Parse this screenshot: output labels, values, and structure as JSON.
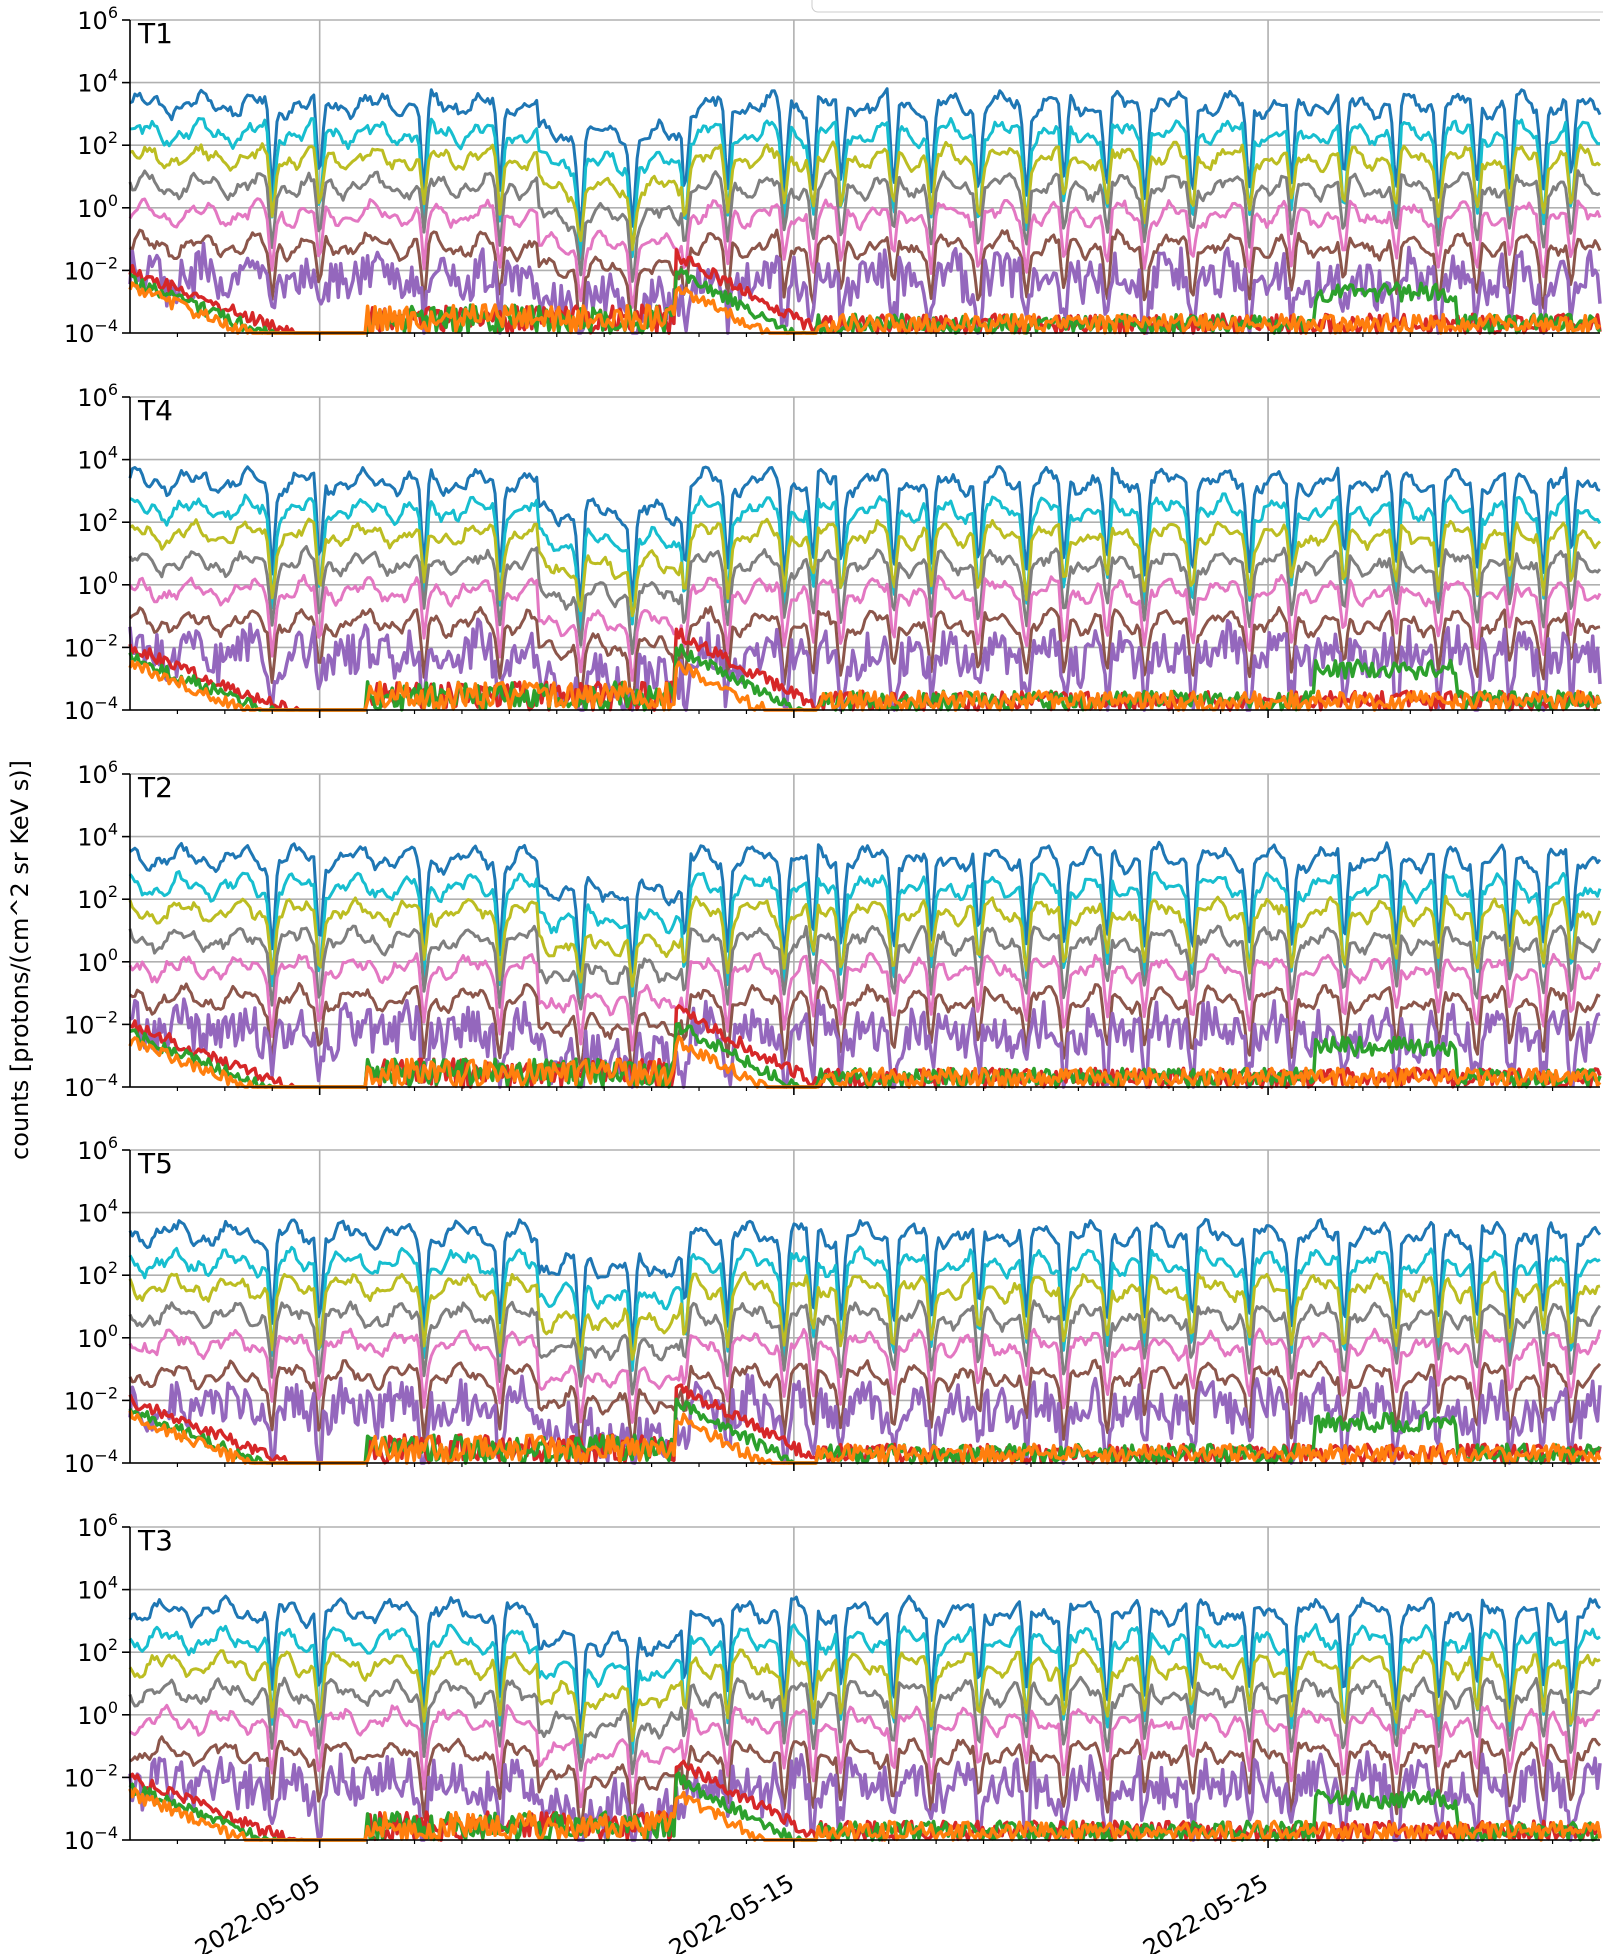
{
  "figure": {
    "ylabel": "counts [protons/(cm^2 sr KeV s)]",
    "xtick_labels": [
      "2022-05-05",
      "2022-05-15",
      "2022-05-25"
    ]
  },
  "chart_data": {
    "type": "line",
    "yscale": "log",
    "ylim_exponents": [
      -4,
      6
    ],
    "ytick_labels": [
      {
        "base": "10",
        "exp": "6"
      },
      {
        "base": "10",
        "exp": "4"
      },
      {
        "base": "10",
        "exp": "2"
      },
      {
        "base": "10",
        "exp": "0"
      },
      {
        "base": "10",
        "exp": "−2"
      },
      {
        "base": "10",
        "exp": "−4"
      }
    ],
    "x_range_days": [
      "2022-05-01",
      "2022-06-01"
    ],
    "xticks": [
      "2022-05-05",
      "2022-05-15",
      "2022-05-25"
    ],
    "grid": true,
    "legend": "top-right (cut off)",
    "panels": [
      "T1",
      "T4",
      "T2",
      "T5",
      "T3"
    ],
    "series_colors": [
      "#1f77b4",
      "#17becf",
      "#bcbd22",
      "#7f7f7f",
      "#e377c2",
      "#8c564b",
      "#9467bd",
      "#d62728",
      "#2ca02c",
      "#ff7f0e"
    ],
    "series_base_log10": [
      3.3,
      2.4,
      1.6,
      0.7,
      -0.2,
      -1.2,
      -2.2,
      -3.5,
      -3.8,
      -4.0
    ],
    "data_note_days": [
      10,
      14,
      21
    ]
  }
}
